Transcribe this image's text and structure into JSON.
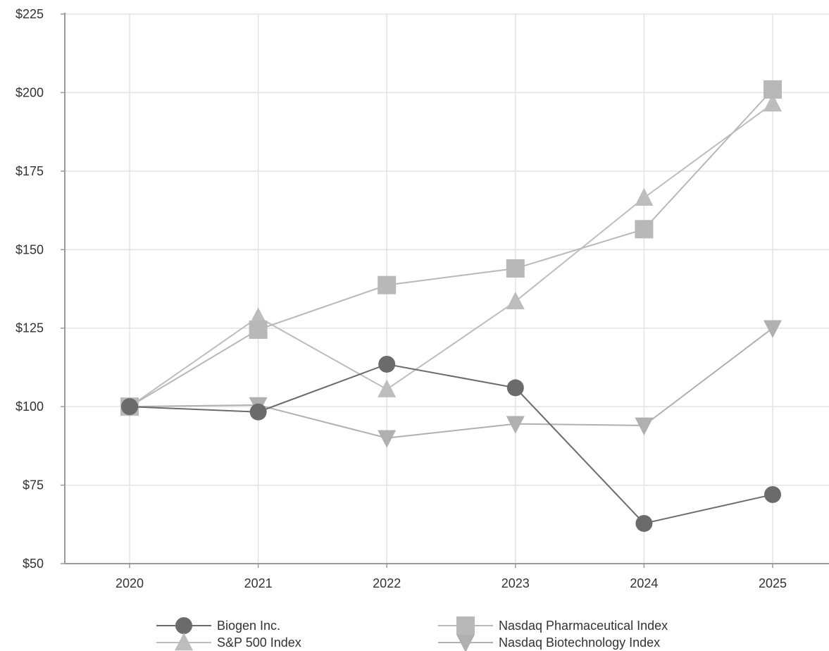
{
  "chart_data": {
    "type": "line",
    "title": "",
    "xlabel": "",
    "ylabel": "",
    "x": [
      2020,
      2021,
      2022,
      2023,
      2024,
      2025
    ],
    "x_tick_labels": [
      "2020",
      "2021",
      "2022",
      "2023",
      "2024",
      "2025"
    ],
    "ylim": [
      50,
      225
    ],
    "y_ticks": [
      50,
      75,
      100,
      125,
      150,
      175,
      200,
      225
    ],
    "y_tick_labels": [
      "$50",
      "$75",
      "$100",
      "$125",
      "$150",
      "$175",
      "$200",
      "$225"
    ],
    "grid": true,
    "legend_position": "bottom",
    "series": [
      {
        "name": "Biogen Inc.",
        "marker": "circle",
        "color": "#6b6b6b",
        "values": [
          100,
          98.3,
          113.5,
          106,
          62.8,
          72
        ]
      },
      {
        "name": "Nasdaq Pharmaceutical Index",
        "marker": "square",
        "color": "#b8b8b8",
        "values": [
          100,
          124.5,
          138.7,
          144,
          156.5,
          201
        ]
      },
      {
        "name": "S&P 500 Index",
        "marker": "triangle-up",
        "color": "#bdbdbd",
        "values": [
          100,
          128.5,
          105.5,
          133.5,
          166.5,
          196.5
        ]
      },
      {
        "name": "Nasdaq Biotechnology Index",
        "marker": "triangle-down",
        "color": "#b0b0b0",
        "values": [
          100,
          100.5,
          90,
          94.5,
          94,
          125
        ]
      }
    ]
  }
}
